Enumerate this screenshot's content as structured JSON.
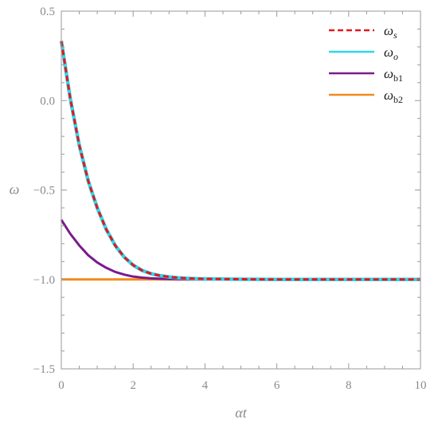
{
  "chart_data": {
    "type": "line",
    "title": "",
    "xlabel": "αt",
    "ylabel": "ω",
    "xlim": [
      0,
      10
    ],
    "ylim": [
      -1.5,
      0.5
    ],
    "xticks": [
      0,
      2,
      4,
      6,
      8,
      10
    ],
    "yticks": [
      -1.5,
      -1.0,
      -0.5,
      0.0,
      0.5
    ],
    "xtick_labels": [
      "0",
      "2",
      "4",
      "6",
      "8",
      "10"
    ],
    "ytick_labels": [
      "−1.5",
      "−1.0",
      "−0.5",
      "0.0",
      "0.5"
    ],
    "grid": false,
    "legend_position": "top-right",
    "x": [
      0,
      0.25,
      0.5,
      0.75,
      1.0,
      1.25,
      1.5,
      1.75,
      2.0,
      2.25,
      2.5,
      2.75,
      3.0,
      3.25,
      3.5,
      3.75,
      4.0,
      5.0,
      6.0,
      7.0,
      8.0,
      9.0,
      10.0
    ],
    "series": [
      {
        "name_main": "ω",
        "name_sub": "s",
        "sub_italic": true,
        "color": "#e4181c",
        "dash": true,
        "values": [
          0.333,
          0.01,
          -0.25,
          -0.45,
          -0.6,
          -0.72,
          -0.81,
          -0.875,
          -0.92,
          -0.95,
          -0.968,
          -0.979,
          -0.986,
          -0.991,
          -0.994,
          -0.996,
          -0.997,
          -0.999,
          -1.0,
          -1.0,
          -1.0,
          -1.0,
          -1.0
        ]
      },
      {
        "name_main": "ω",
        "name_sub": "o",
        "sub_italic": true,
        "color": "#2fd6ec",
        "dash": false,
        "values": [
          0.333,
          0.01,
          -0.25,
          -0.45,
          -0.6,
          -0.72,
          -0.81,
          -0.875,
          -0.92,
          -0.95,
          -0.968,
          -0.979,
          -0.986,
          -0.991,
          -0.994,
          -0.996,
          -0.997,
          -0.999,
          -1.0,
          -1.0,
          -1.0,
          -1.0,
          -1.0
        ]
      },
      {
        "name_main": "ω",
        "name_sub": "b1",
        "sub_italic": false,
        "color": "#7b1a8c",
        "dash": false,
        "values": [
          -0.667,
          -0.745,
          -0.81,
          -0.865,
          -0.905,
          -0.935,
          -0.958,
          -0.973,
          -0.984,
          -0.99,
          -0.994,
          -0.996,
          -0.998,
          -0.999,
          -1.0,
          -1.0,
          -1.0,
          -1.0,
          -1.0,
          -1.0,
          -1.0,
          -1.0,
          -1.0
        ]
      },
      {
        "name_main": "ω",
        "name_sub": "b2",
        "sub_italic": false,
        "color": "#f28a1c",
        "dash": false,
        "values": [
          -1.0,
          -1.0,
          -1.0,
          -1.0,
          -1.0,
          -1.0,
          -1.0,
          -1.0,
          -1.0,
          -1.0,
          -1.0,
          -1.0,
          -1.0,
          -1.0,
          -1.0,
          -1.0,
          -1.0,
          -1.0,
          -1.0,
          -1.0,
          -1.0,
          -1.0,
          -1.0
        ]
      }
    ]
  }
}
